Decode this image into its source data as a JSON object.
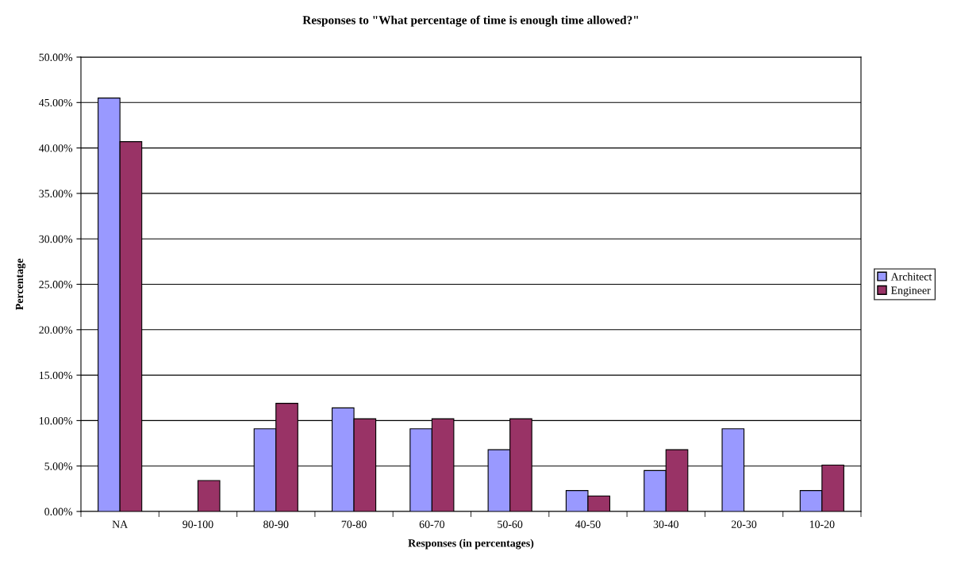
{
  "chart_data": {
    "type": "bar",
    "title": "Responses to \"What percentage of time is enough time allowed?\"",
    "xlabel": "Responses (in percentages)",
    "ylabel": "Percentage",
    "categories": [
      "NA",
      "90-100",
      "80-90",
      "70-80",
      "60-70",
      "50-60",
      "40-50",
      "30-40",
      "20-30",
      "10-20"
    ],
    "series": [
      {
        "name": "Architect",
        "color": "#9999ff",
        "values": [
          45.5,
          null,
          9.1,
          11.4,
          9.1,
          6.8,
          2.3,
          4.5,
          9.1,
          2.3
        ]
      },
      {
        "name": "Engineer",
        "color": "#993366",
        "values": [
          40.7,
          3.4,
          11.9,
          10.2,
          10.2,
          10.2,
          1.7,
          6.8,
          null,
          5.1
        ]
      }
    ],
    "ylim": [
      0,
      50
    ],
    "yticks": [
      {
        "value": 0,
        "label": "0.00%"
      },
      {
        "value": 5,
        "label": "5.00%"
      },
      {
        "value": 10,
        "label": "10.00%"
      },
      {
        "value": 15,
        "label": "15.00%"
      },
      {
        "value": 20,
        "label": "20.00%"
      },
      {
        "value": 25,
        "label": "25.00%"
      },
      {
        "value": 30,
        "label": "30.00%"
      },
      {
        "value": 35,
        "label": "35.00%"
      },
      {
        "value": 40,
        "label": "40.00%"
      },
      {
        "value": 45,
        "label": "45.00%"
      },
      {
        "value": 50,
        "label": "50.00%"
      }
    ],
    "grid": "y",
    "legend": "right"
  }
}
